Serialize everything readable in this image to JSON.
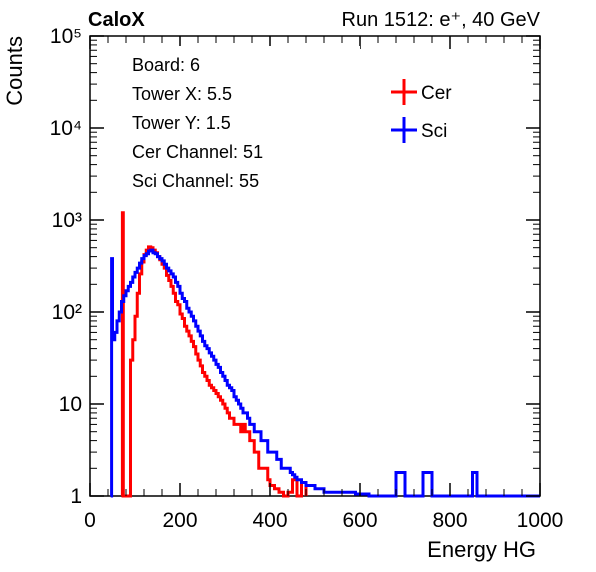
{
  "chart_data": {
    "type": "line",
    "header_left": "CaloX",
    "header_right": "Run 1512: e⁺, 40 GeV",
    "xlabel": "Energy HG",
    "ylabel": "Counts",
    "xlim": [
      0,
      1000
    ],
    "ylim": [
      1,
      100000
    ],
    "yscale": "log",
    "grid": false,
    "x_ticks": [
      0,
      200,
      400,
      600,
      800,
      1000
    ],
    "x_tick_labels": [
      "0",
      "200",
      "400",
      "600",
      "800",
      "1000"
    ],
    "y_ticks": [
      1,
      10,
      100,
      1000,
      10000,
      100000
    ],
    "y_tick_labels": [
      "1",
      "10",
      "10²",
      "10³",
      "10⁴",
      "10⁵"
    ],
    "info_lines": [
      "Board: 6",
      "Tower X: 5.5",
      "Tower Y: 1.5",
      "Cer Channel: 51",
      "Sci Channel: 55"
    ],
    "legend_position": "top-right",
    "series": [
      {
        "name": "Cer",
        "color": "#ff0000",
        "points": [
          [
            70,
            1
          ],
          [
            72,
            1200
          ],
          [
            74,
            1
          ],
          [
            90,
            30
          ],
          [
            95,
            50
          ],
          [
            100,
            90
          ],
          [
            105,
            160
          ],
          [
            110,
            260
          ],
          [
            115,
            350
          ],
          [
            120,
            420
          ],
          [
            125,
            470
          ],
          [
            130,
            510
          ],
          [
            135,
            500
          ],
          [
            140,
            470
          ],
          [
            145,
            440
          ],
          [
            150,
            400
          ],
          [
            155,
            370
          ],
          [
            160,
            330
          ],
          [
            165,
            300
          ],
          [
            170,
            250
          ],
          [
            175,
            220
          ],
          [
            180,
            190
          ],
          [
            185,
            160
          ],
          [
            190,
            130
          ],
          [
            195,
            120
          ],
          [
            200,
            95
          ],
          [
            205,
            85
          ],
          [
            210,
            70
          ],
          [
            215,
            62
          ],
          [
            220,
            55
          ],
          [
            225,
            48
          ],
          [
            230,
            42
          ],
          [
            235,
            35
          ],
          [
            240,
            30
          ],
          [
            245,
            26
          ],
          [
            250,
            22
          ],
          [
            255,
            20
          ],
          [
            260,
            18
          ],
          [
            265,
            16
          ],
          [
            270,
            15
          ],
          [
            275,
            14
          ],
          [
            280,
            13
          ],
          [
            285,
            12
          ],
          [
            290,
            11
          ],
          [
            295,
            10
          ],
          [
            300,
            9
          ],
          [
            305,
            8
          ],
          [
            310,
            7
          ],
          [
            315,
            7
          ],
          [
            320,
            6
          ],
          [
            325,
            6
          ],
          [
            330,
            6
          ],
          [
            335,
            5
          ],
          [
            340,
            6
          ],
          [
            345,
            5
          ],
          [
            350,
            5
          ],
          [
            355,
            4
          ],
          [
            360,
            4
          ],
          [
            365,
            3
          ],
          [
            370,
            3
          ],
          [
            375,
            2
          ],
          [
            380,
            2
          ],
          [
            385,
            2
          ],
          [
            390,
            2
          ],
          [
            395,
            1.5
          ],
          [
            400,
            1.3
          ],
          [
            410,
            1.2
          ],
          [
            420,
            1.1
          ],
          [
            430,
            1
          ],
          [
            440,
            1.1
          ],
          [
            450,
            1.5
          ],
          [
            460,
            1
          ],
          [
            470,
            1.4
          ],
          [
            480,
            1
          ]
        ]
      },
      {
        "name": "Sci",
        "color": "#0000ff",
        "points": [
          [
            46,
            1
          ],
          [
            48,
            380
          ],
          [
            50,
            50
          ],
          [
            55,
            60
          ],
          [
            60,
            80
          ],
          [
            65,
            100
          ],
          [
            70,
            130
          ],
          [
            75,
            150
          ],
          [
            80,
            170
          ],
          [
            85,
            190
          ],
          [
            90,
            210
          ],
          [
            95,
            240
          ],
          [
            100,
            270
          ],
          [
            105,
            300
          ],
          [
            110,
            340
          ],
          [
            115,
            380
          ],
          [
            120,
            410
          ],
          [
            125,
            430
          ],
          [
            130,
            460
          ],
          [
            135,
            470
          ],
          [
            140,
            440
          ],
          [
            145,
            430
          ],
          [
            150,
            400
          ],
          [
            155,
            380
          ],
          [
            160,
            360
          ],
          [
            165,
            330
          ],
          [
            170,
            300
          ],
          [
            175,
            280
          ],
          [
            180,
            260
          ],
          [
            185,
            240
          ],
          [
            190,
            210
          ],
          [
            195,
            190
          ],
          [
            200,
            160
          ],
          [
            205,
            140
          ],
          [
            210,
            130
          ],
          [
            215,
            110
          ],
          [
            220,
            100
          ],
          [
            225,
            90
          ],
          [
            230,
            80
          ],
          [
            235,
            70
          ],
          [
            240,
            62
          ],
          [
            245,
            55
          ],
          [
            250,
            48
          ],
          [
            255,
            43
          ],
          [
            260,
            40
          ],
          [
            265,
            36
          ],
          [
            270,
            33
          ],
          [
            275,
            30
          ],
          [
            280,
            27
          ],
          [
            285,
            25
          ],
          [
            290,
            22
          ],
          [
            295,
            20
          ],
          [
            300,
            18
          ],
          [
            305,
            16
          ],
          [
            310,
            15
          ],
          [
            315,
            14
          ],
          [
            320,
            12
          ],
          [
            325,
            11
          ],
          [
            330,
            10
          ],
          [
            335,
            9
          ],
          [
            340,
            8
          ],
          [
            345,
            8
          ],
          [
            350,
            7
          ],
          [
            355,
            6
          ],
          [
            360,
            6
          ],
          [
            365,
            5
          ],
          [
            370,
            5
          ],
          [
            375,
            5
          ],
          [
            380,
            4
          ],
          [
            385,
            4
          ],
          [
            390,
            4
          ],
          [
            395,
            3
          ],
          [
            400,
            3
          ],
          [
            405,
            3
          ],
          [
            410,
            3
          ],
          [
            415,
            2.5
          ],
          [
            420,
            2.5
          ],
          [
            425,
            2
          ],
          [
            430,
            2
          ],
          [
            435,
            2
          ],
          [
            440,
            2
          ],
          [
            445,
            1.8
          ],
          [
            450,
            1.7
          ],
          [
            455,
            1.6
          ],
          [
            460,
            1.5
          ],
          [
            470,
            1.4
          ],
          [
            480,
            1.3
          ],
          [
            490,
            1.3
          ],
          [
            500,
            1.2
          ],
          [
            510,
            1.2
          ],
          [
            520,
            1.1
          ],
          [
            530,
            1.1
          ],
          [
            540,
            1.1
          ],
          [
            550,
            1.1
          ],
          [
            560,
            1.1
          ],
          [
            570,
            1.1
          ],
          [
            580,
            1.1
          ],
          [
            590,
            1.05
          ],
          [
            600,
            1.05
          ],
          [
            610,
            1.05
          ],
          [
            620,
            1
          ],
          [
            660,
            1
          ],
          [
            680,
            1.8
          ],
          [
            700,
            1
          ],
          [
            740,
            1.8
          ],
          [
            760,
            1
          ],
          [
            840,
            1
          ],
          [
            850,
            1.8
          ],
          [
            860,
            1
          ],
          [
            1000,
            1
          ]
        ]
      }
    ]
  }
}
